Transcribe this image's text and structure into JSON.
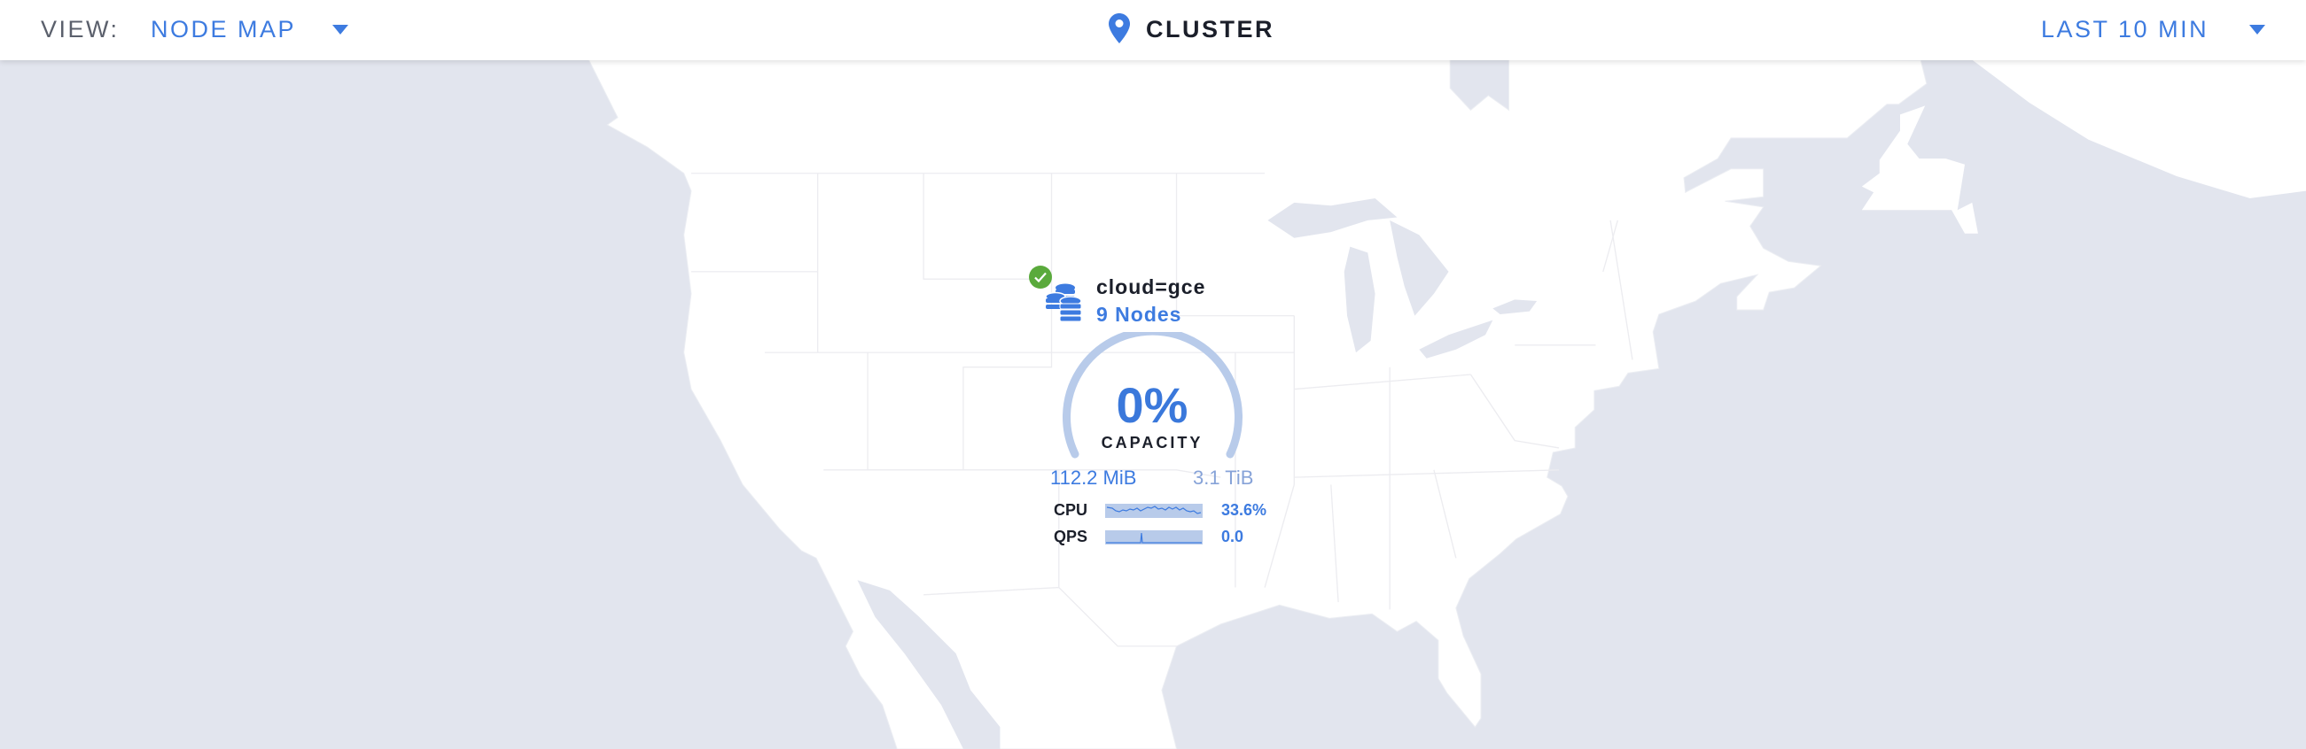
{
  "header": {
    "view_label": "VIEW:",
    "view_value": "NODE MAP",
    "location_icon": "map-pin-icon",
    "title": "CLUSTER",
    "time_range": "LAST 10 MIN"
  },
  "node_group": {
    "status": "healthy",
    "status_icon": "check-circle-icon",
    "icon": "database-stack-icon",
    "locality": "cloud=gce",
    "node_count": "9 Nodes",
    "capacity_percent": "0%",
    "capacity_label": "CAPACITY",
    "used": "112.2 MiB",
    "total": "3.1 TiB",
    "metrics": [
      {
        "label": "CPU",
        "value": "33.6%"
      },
      {
        "label": "QPS",
        "value": "0.0"
      }
    ]
  },
  "colors": {
    "accent": "#3d7be0",
    "ocean": "#e2e5ee",
    "land": "#ffffff",
    "healthy": "#5aaa3c",
    "gauge_track": "#b8cbea"
  }
}
